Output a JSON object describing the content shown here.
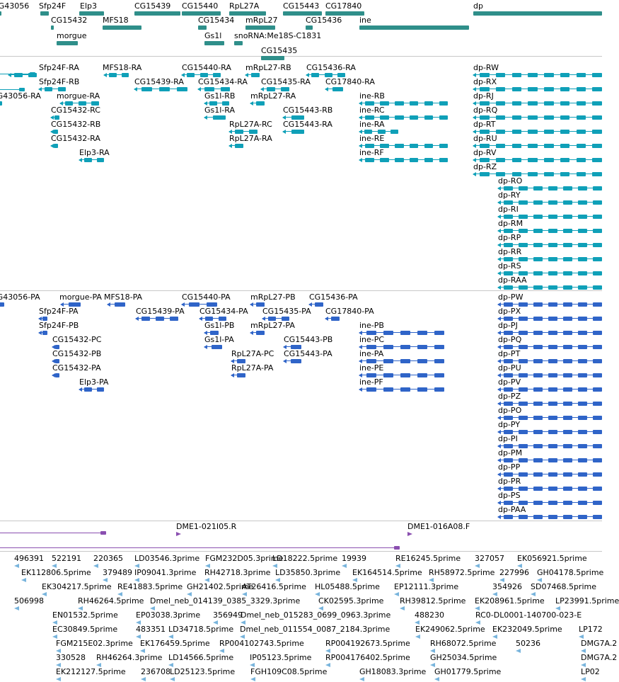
{
  "colors": {
    "gene": "#2f8f8a",
    "mrna": "#0fa0b8",
    "protein": "#2f64c8",
    "clone": "#8a4fb0",
    "est": "#78b4dc",
    "separator": "#c8c8c8"
  },
  "tracks": [
    {
      "name": "genes",
      "color_key": "gene",
      "features": [
        {
          "label": "CG43056",
          "clip_left": true
        },
        {
          "label": "Sfp24F"
        },
        {
          "label": "Elp3"
        },
        {
          "label": "CG15439"
        },
        {
          "label": "CG15440"
        },
        {
          "label": "RpL27A"
        },
        {
          "label": "CG15443"
        },
        {
          "label": "CG17840"
        },
        {
          "label": "dp"
        },
        {
          "label": "CG15432"
        },
        {
          "label": "MFS18"
        },
        {
          "label": "CG15434"
        },
        {
          "label": "mRpL27"
        },
        {
          "label": "CG15436"
        },
        {
          "label": "ine"
        },
        {
          "label": "morgue"
        },
        {
          "label": "Gs1l"
        },
        {
          "label": "snoRNA:Me18S-C1831"
        },
        {
          "label": "CG15435"
        }
      ]
    },
    {
      "name": "transcripts",
      "color_key": "mrna",
      "features": [
        {
          "label": "Sfp24F-RA"
        },
        {
          "label": "MFS18-RA"
        },
        {
          "label": "CG15440-RA"
        },
        {
          "label": "mRpL27-RB"
        },
        {
          "label": "CG15436-RA"
        },
        {
          "label": "dp-RW"
        },
        {
          "label": "Sfp24F-RB"
        },
        {
          "label": "CG15439-RA"
        },
        {
          "label": "CG15434-RA"
        },
        {
          "label": "CG15435-RA"
        },
        {
          "label": "CG17840-RA"
        },
        {
          "label": "dp-RX"
        },
        {
          "label": "CG43056-RA"
        },
        {
          "label": "morgue-RA"
        },
        {
          "label": "Gs1l-RB"
        },
        {
          "label": "mRpL27-RA"
        },
        {
          "label": "ine-RB"
        },
        {
          "label": "dp-RJ"
        },
        {
          "label": "CG15432-RC"
        },
        {
          "label": "Gs1l-RA"
        },
        {
          "label": "CG15443-RB"
        },
        {
          "label": "ine-RC"
        },
        {
          "label": "dp-RQ"
        },
        {
          "label": "CG15432-RB"
        },
        {
          "label": "RpL27A-RC"
        },
        {
          "label": "CG15443-RA"
        },
        {
          "label": "ine-RA"
        },
        {
          "label": "dp-RT"
        },
        {
          "label": "CG15432-RA"
        },
        {
          "label": "RpL27A-RA"
        },
        {
          "label": "ine-RE"
        },
        {
          "label": "dp-RU"
        },
        {
          "label": "Elp3-RA"
        },
        {
          "label": "ine-RF"
        },
        {
          "label": "dp-RV"
        },
        {
          "label": "dp-RZ"
        },
        {
          "label": "dp-RO"
        },
        {
          "label": "dp-RY"
        },
        {
          "label": "dp-RI"
        },
        {
          "label": "dp-RM"
        },
        {
          "label": "dp-RP"
        },
        {
          "label": "dp-RR"
        },
        {
          "label": "dp-RS"
        },
        {
          "label": "dp-RAA"
        }
      ]
    },
    {
      "name": "proteins",
      "color_key": "protein",
      "features": [
        {
          "label": "CG43056-PA"
        },
        {
          "label": "morgue-PA"
        },
        {
          "label": "MFS18-PA"
        },
        {
          "label": "CG15440-PA"
        },
        {
          "label": "mRpL27-PB"
        },
        {
          "label": "CG15436-PA"
        },
        {
          "label": "dp-PW"
        },
        {
          "label": "Sfp24F-PA"
        },
        {
          "label": "CG15439-PA"
        },
        {
          "label": "CG15434-PA"
        },
        {
          "label": "CG15435-PA"
        },
        {
          "label": "CG17840-PA"
        },
        {
          "label": "dp-PX"
        },
        {
          "label": "Sfp24F-PB"
        },
        {
          "label": "Gs1l-PB"
        },
        {
          "label": "mRpL27-PA"
        },
        {
          "label": "ine-PB"
        },
        {
          "label": "dp-PJ"
        },
        {
          "label": "CG15432-PC"
        },
        {
          "label": "Gs1l-PA"
        },
        {
          "label": "CG15443-PB"
        },
        {
          "label": "ine-PC"
        },
        {
          "label": "dp-PQ"
        },
        {
          "label": "CG15432-PB"
        },
        {
          "label": "RpL27A-PC"
        },
        {
          "label": "CG15443-PA"
        },
        {
          "label": "ine-PA"
        },
        {
          "label": "dp-PT"
        },
        {
          "label": "CG15432-PA"
        },
        {
          "label": "RpL27A-PA"
        },
        {
          "label": "ine-PE"
        },
        {
          "label": "dp-PU"
        },
        {
          "label": "Elp3-PA"
        },
        {
          "label": "ine-PF"
        },
        {
          "label": "dp-PV"
        },
        {
          "label": "dp-PZ"
        },
        {
          "label": "dp-PO"
        },
        {
          "label": "dp-PY"
        },
        {
          "label": "dp-PI"
        },
        {
          "label": "dp-PM"
        },
        {
          "label": "dp-PP"
        },
        {
          "label": "dp-PR"
        },
        {
          "label": "dp-PS"
        },
        {
          "label": "dp-PAA"
        }
      ]
    },
    {
      "name": "clones",
      "color_key": "clone",
      "features": [
        {
          "label": "DME1-021I05.R"
        },
        {
          "label": "DME1-016A08.F"
        }
      ]
    },
    {
      "name": "ests",
      "color_key": "est",
      "features": [
        {
          "label": "496391"
        },
        {
          "label": "522191"
        },
        {
          "label": "220365"
        },
        {
          "label": "LD03546.3prime"
        },
        {
          "label": "FGM232D05.3prime"
        },
        {
          "label": "LD18222.5prime"
        },
        {
          "label": "19939"
        },
        {
          "label": "RE16245.5prime"
        },
        {
          "label": "327057"
        },
        {
          "label": "EK056921.5prime"
        },
        {
          "label": "EK112806.5prime"
        },
        {
          "label": "379489"
        },
        {
          "label": "IP09041.3prime"
        },
        {
          "label": "RH42718.3prime"
        },
        {
          "label": "LD35850.3prime"
        },
        {
          "label": "EK164514.5prime"
        },
        {
          "label": "RH58972.5prime"
        },
        {
          "label": "227996"
        },
        {
          "label": "GH04178.5prime"
        },
        {
          "label": "EK304217.5prime"
        },
        {
          "label": "RE41883.5prime"
        },
        {
          "label": "GH21402.5prime"
        },
        {
          "label": "AT26416.5prime"
        },
        {
          "label": "HL05488.5prime"
        },
        {
          "label": "EP12111.3prime"
        },
        {
          "label": "354926"
        },
        {
          "label": "SD07468.5prime"
        },
        {
          "label": "506998"
        },
        {
          "label": "RH46264.5prime"
        },
        {
          "label": "Dmel_neb_014139_0385_3329.3prime"
        },
        {
          "label": "CK02595.3prime"
        },
        {
          "label": "RH39812.5prime"
        },
        {
          "label": "EK208961.5prime"
        },
        {
          "label": "LP23991.5prime"
        },
        {
          "label": "EN01532.5prime"
        },
        {
          "label": "EP03038.3prime"
        },
        {
          "label": "356949"
        },
        {
          "label": "Dmel_neb_015283_0699_0963.3prime"
        },
        {
          "label": "488230"
        },
        {
          "label": "RC0-DL0001-140700-023-E"
        },
        {
          "label": "EC30849.5prime"
        },
        {
          "label": "483351"
        },
        {
          "label": "LD34718.5prime"
        },
        {
          "label": "Dmel_neb_011554_0087_2184.3prime"
        },
        {
          "label": "EK249062.5prime"
        },
        {
          "label": "EK232049.5prime"
        },
        {
          "label": "LP172"
        },
        {
          "label": "FGM215E02.3prime"
        },
        {
          "label": "EK176459.5prime"
        },
        {
          "label": "RP004102743.5prime"
        },
        {
          "label": "RP004192673.5prime"
        },
        {
          "label": "RH68072.5prime"
        },
        {
          "label": "50236"
        },
        {
          "label": "DMG7A.2"
        },
        {
          "label": "330528"
        },
        {
          "label": "RH46264.3prime"
        },
        {
          "label": "LD14566.5prime"
        },
        {
          "label": "IP05123.5prime"
        },
        {
          "label": "RP004176402.5prime"
        },
        {
          "label": "GH25034.5prime"
        },
        {
          "label": "DMG7A.2"
        },
        {
          "label": "EK212127.5prime"
        },
        {
          "label": "236708"
        },
        {
          "label": "LD25123.5prime"
        },
        {
          "label": "FGH109C08.5prime"
        },
        {
          "label": "GH18083.3prime"
        },
        {
          "label": "GH01779.5prime"
        },
        {
          "label": "LP02"
        }
      ]
    }
  ]
}
